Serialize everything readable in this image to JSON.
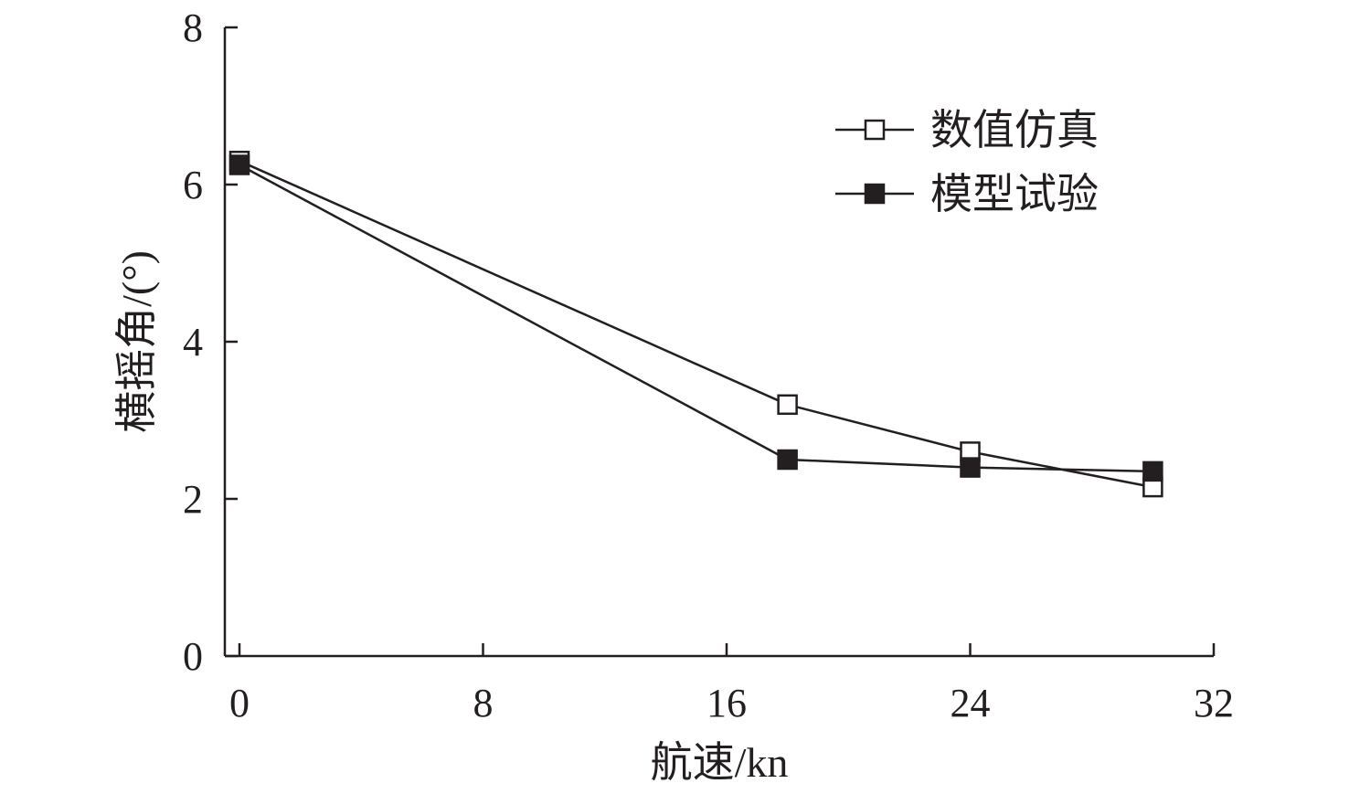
{
  "chart_data": {
    "type": "line",
    "xlabel": "航速/kn",
    "ylabel": "横摇角/(°)",
    "xlim": [
      0,
      32
    ],
    "ylim": [
      0,
      8
    ],
    "xticks": [
      0,
      8,
      16,
      24,
      32
    ],
    "yticks": [
      0,
      2,
      4,
      6,
      8
    ],
    "grid": false,
    "legend_position": "top-right",
    "series": [
      {
        "name": "数值仿真",
        "marker": "open-square",
        "x": [
          0,
          18,
          24,
          30
        ],
        "y": [
          6.3,
          3.2,
          2.6,
          2.15
        ]
      },
      {
        "name": "模型试验",
        "marker": "filled-square",
        "x": [
          0,
          18,
          24,
          30
        ],
        "y": [
          6.25,
          2.5,
          2.4,
          2.35
        ]
      }
    ]
  },
  "colors": {
    "axis": "#231f20",
    "line": "#231f20",
    "marker_fill_open": "#ffffff",
    "marker_fill_solid": "#231f20"
  }
}
